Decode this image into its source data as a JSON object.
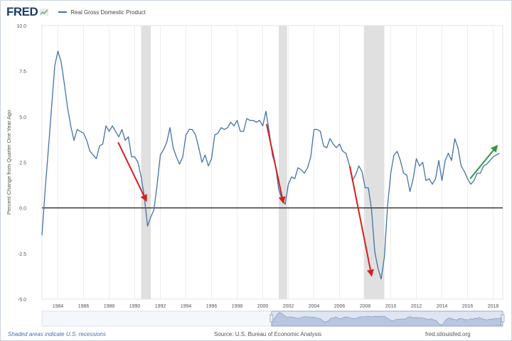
{
  "header": {
    "logo": "FRED",
    "legend_label": "Real Gross Domestic Product"
  },
  "footer": {
    "note": "Shaded areas indicate U.S. recessions",
    "source": "Source: U.S. Bureau of Economic Analysis",
    "site": "fred.stlouisfed.org"
  },
  "colors": {
    "series": "#4572a7",
    "recession": "#e0e0e0",
    "down_arrow": "#d62020",
    "up_arrow": "#2e9a3c",
    "zero_line": "#000000"
  },
  "chart_data": {
    "type": "line",
    "title": "",
    "xlabel": "",
    "ylabel": "Percent Change from Quarter One Year Ago",
    "xlim": [
      1982.75,
      2018.75
    ],
    "ylim": [
      -5,
      10
    ],
    "yticks": [
      "10.0",
      "7.5",
      "5.0",
      "2.5",
      "0.0",
      "-2.5",
      "-5.0"
    ],
    "yticks_values": [
      10,
      7.5,
      5,
      2.5,
      0,
      -2.5,
      -5
    ],
    "xticks": [
      "1984",
      "1986",
      "1988",
      "1990",
      "1992",
      "1994",
      "1996",
      "1998",
      "2000",
      "2002",
      "2004",
      "2006",
      "2008",
      "2010",
      "2012",
      "2014",
      "2016",
      "2018"
    ],
    "xticks_values": [
      1984,
      1986,
      1988,
      1990,
      1992,
      1994,
      1996,
      1998,
      2000,
      2002,
      2004,
      2006,
      2008,
      2010,
      2012,
      2014,
      2016,
      2018
    ],
    "grid": "vertical",
    "zero_line": true,
    "recessions": [
      [
        1990.5,
        1991.25
      ],
      [
        2001.25,
        2001.9
      ],
      [
        2007.9,
        2009.5
      ]
    ],
    "series": [
      {
        "name": "Real Gross Domestic Product",
        "x": [
          1982.75,
          1983.0,
          1983.25,
          1983.5,
          1983.75,
          1984.0,
          1984.25,
          1984.5,
          1984.75,
          1985.0,
          1985.25,
          1985.5,
          1985.75,
          1986.0,
          1986.25,
          1986.5,
          1986.75,
          1987.0,
          1987.25,
          1987.5,
          1987.75,
          1988.0,
          1988.25,
          1988.5,
          1988.75,
          1989.0,
          1989.25,
          1989.5,
          1989.75,
          1990.0,
          1990.25,
          1990.5,
          1990.75,
          1991.0,
          1991.25,
          1991.5,
          1991.75,
          1992.0,
          1992.25,
          1992.5,
          1992.75,
          1993.0,
          1993.25,
          1993.5,
          1993.75,
          1994.0,
          1994.25,
          1994.5,
          1994.75,
          1995.0,
          1995.25,
          1995.5,
          1995.75,
          1996.0,
          1996.25,
          1996.5,
          1996.75,
          1997.0,
          1997.25,
          1997.5,
          1997.75,
          1998.0,
          1998.25,
          1998.5,
          1998.75,
          1999.0,
          1999.25,
          1999.5,
          1999.75,
          2000.0,
          2000.25,
          2000.5,
          2000.75,
          2001.0,
          2001.25,
          2001.5,
          2001.75,
          2002.0,
          2002.25,
          2002.5,
          2002.75,
          2003.0,
          2003.25,
          2003.5,
          2003.75,
          2004.0,
          2004.25,
          2004.5,
          2004.75,
          2005.0,
          2005.25,
          2005.5,
          2005.75,
          2006.0,
          2006.25,
          2006.5,
          2006.75,
          2007.0,
          2007.25,
          2007.5,
          2007.75,
          2008.0,
          2008.25,
          2008.5,
          2008.75,
          2009.0,
          2009.25,
          2009.5,
          2009.75,
          2010.0,
          2010.25,
          2010.5,
          2010.75,
          2011.0,
          2011.25,
          2011.5,
          2011.75,
          2012.0,
          2012.25,
          2012.5,
          2012.75,
          2013.0,
          2013.25,
          2013.5,
          2013.75,
          2014.0,
          2014.25,
          2014.5,
          2014.75,
          2015.0,
          2015.25,
          2015.5,
          2015.75,
          2016.0,
          2016.25,
          2016.5,
          2016.75,
          2017.0,
          2017.25,
          2017.5,
          2017.75,
          2018.0,
          2018.25,
          2018.5
        ],
        "values": [
          -1.5,
          1.0,
          3.2,
          5.5,
          7.8,
          8.6,
          8.0,
          6.8,
          5.5,
          4.5,
          3.7,
          4.3,
          4.2,
          4.1,
          3.7,
          3.1,
          2.9,
          2.7,
          3.4,
          3.5,
          4.5,
          4.2,
          4.5,
          4.2,
          3.9,
          4.3,
          3.7,
          3.9,
          2.8,
          2.8,
          2.5,
          1.7,
          0.6,
          -1.0,
          -0.5,
          -0.1,
          1.3,
          2.9,
          3.2,
          3.6,
          4.4,
          3.3,
          2.8,
          2.4,
          2.8,
          4.0,
          4.3,
          4.3,
          4.0,
          3.3,
          2.5,
          2.9,
          2.3,
          2.7,
          4.0,
          4.1,
          4.4,
          4.3,
          4.4,
          4.7,
          4.5,
          4.8,
          4.2,
          4.2,
          4.9,
          4.8,
          4.8,
          4.7,
          4.8,
          4.5,
          5.3,
          4.2,
          2.9,
          2.3,
          1.0,
          0.5,
          0.2,
          1.3,
          1.7,
          1.6,
          2.2,
          2.1,
          1.9,
          2.2,
          2.8,
          4.3,
          4.3,
          4.2,
          3.4,
          3.3,
          3.8,
          3.5,
          3.3,
          3.5,
          3.1,
          3.0,
          2.4,
          1.5,
          1.8,
          2.3,
          2.0,
          1.1,
          1.1,
          -0.1,
          -2.4,
          -3.3,
          -3.9,
          -2.7,
          0.1,
          1.9,
          2.9,
          3.1,
          2.6,
          1.9,
          1.8,
          0.9,
          1.6,
          2.7,
          2.3,
          2.5,
          1.5,
          1.6,
          1.3,
          1.6,
          2.6,
          1.5,
          2.6,
          3.0,
          2.6,
          3.8,
          3.3,
          2.3,
          2.0,
          1.6,
          1.3,
          1.5,
          1.9,
          1.9,
          2.3,
          2.4,
          2.6,
          2.8,
          2.9,
          3.0
        ]
      }
    ],
    "annotations": [
      {
        "type": "arrow",
        "color": "down",
        "from": [
          1988.7,
          3.6
        ],
        "to": [
          1990.9,
          0.4
        ]
      },
      {
        "type": "arrow",
        "color": "down",
        "from": [
          2000.3,
          4.6
        ],
        "to": [
          2001.6,
          0.3
        ]
      },
      {
        "type": "arrow",
        "color": "down",
        "from": [
          2006.8,
          2.3
        ],
        "to": [
          2008.5,
          -3.7
        ]
      },
      {
        "type": "arrow",
        "color": "up",
        "from": [
          2016.2,
          1.6
        ],
        "to": [
          2018.3,
          3.4
        ]
      }
    ],
    "navigator": {
      "xlim": [
        1947,
        2018.75
      ],
      "window": [
        1982.75,
        2018.75
      ]
    }
  }
}
